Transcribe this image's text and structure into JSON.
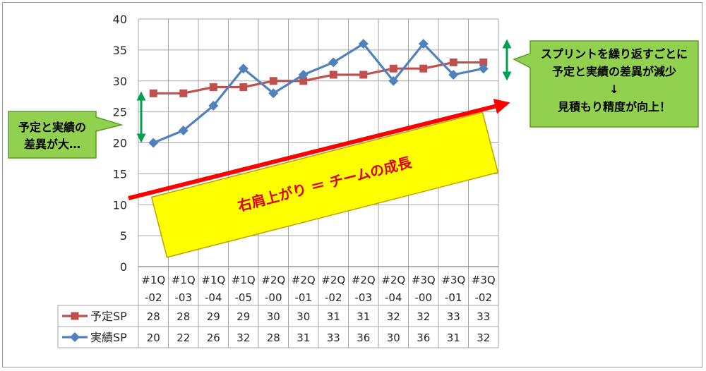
{
  "chart_data": {
    "type": "line",
    "categories": [
      "#1Q\n-02",
      "#1Q\n-03",
      "#1Q\n-04",
      "#1Q\n-05",
      "#2Q\n-00",
      "#2Q\n-01",
      "#2Q\n-02",
      "#2Q\n-03",
      "#2Q\n-04",
      "#3Q\n-00",
      "#3Q\n-01",
      "#3Q\n-02"
    ],
    "series": [
      {
        "name": "予定SP",
        "values": [
          28,
          28,
          29,
          29,
          30,
          30,
          31,
          31,
          32,
          32,
          33,
          33
        ],
        "color": "#c0504d",
        "marker": "square"
      },
      {
        "name": "実績SP",
        "values": [
          20,
          22,
          26,
          32,
          28,
          31,
          33,
          36,
          30,
          36,
          31,
          32
        ],
        "color": "#4f81bd",
        "marker": "diamond"
      }
    ],
    "ylim": [
      0,
      40
    ],
    "yticks": [
      0,
      5,
      10,
      15,
      20,
      25,
      30,
      35,
      40
    ],
    "grid": true,
    "legend": "data-table-left",
    "data_table": true
  },
  "annotations": {
    "left_callout": {
      "lines": [
        "予定と実績の",
        "差異が大…"
      ],
      "fill": "#92d050",
      "border": "#5a9a2a"
    },
    "right_callout": {
      "lines": [
        "スプリントを繰り返すごとに",
        "予定と実績の差異が減少",
        "↓",
        "見積もり精度が向上！"
      ],
      "fill": "#92d050",
      "border": "#5a9a2a"
    },
    "banner": {
      "text": "右肩上がり ＝ チームの成長",
      "fill": "#ffff00",
      "text_color": "#e00000",
      "border": "#c0a000"
    },
    "trend_arrow_color": "#ff0000",
    "gap_arrow_color": "#00a050"
  }
}
